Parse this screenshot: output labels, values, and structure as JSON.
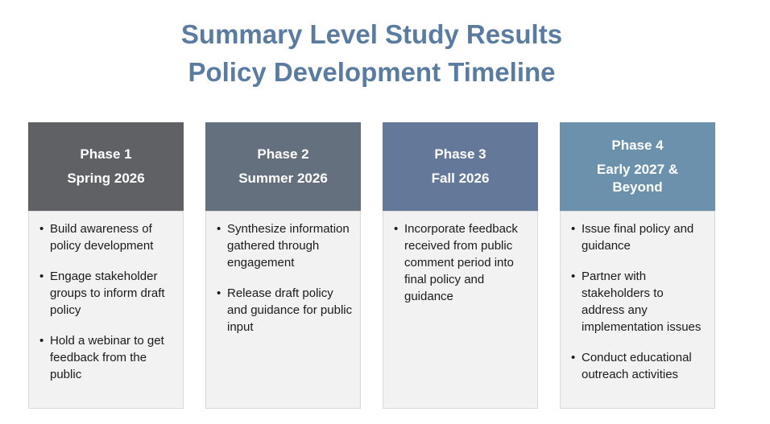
{
  "title": {
    "line1": "Summary Level Study Results",
    "line2": "Policy Development Timeline",
    "color": "#5B7CA1"
  },
  "body_style": {
    "background": "#F2F2F2",
    "border": "#D9D9D9"
  },
  "phases": [
    {
      "name": "Phase 1",
      "period": "Spring 2026",
      "header_color": "#606164",
      "bullets": [
        "Build awareness of policy development",
        "Engage stakeholder groups to inform draft policy",
        "Hold a webinar to get feedback from the public"
      ]
    },
    {
      "name": "Phase 2",
      "period": "Summer 2026",
      "header_color": "#65707F",
      "bullets": [
        "Synthesize information gathered through engagement",
        "Release draft policy and guidance for public input"
      ]
    },
    {
      "name": "Phase 3",
      "period": "Fall 2026",
      "header_color": "#64789A",
      "bullets": [
        "Incorporate feedback received from public comment period into final policy and guidance"
      ]
    },
    {
      "name": "Phase 4",
      "period": "Early 2027 & Beyond",
      "header_color": "#6C91AD",
      "bullets": [
        "Issue final policy and guidance",
        "Partner with stakeholders to address any implementation issues",
        "Conduct educational outreach activities"
      ]
    }
  ]
}
